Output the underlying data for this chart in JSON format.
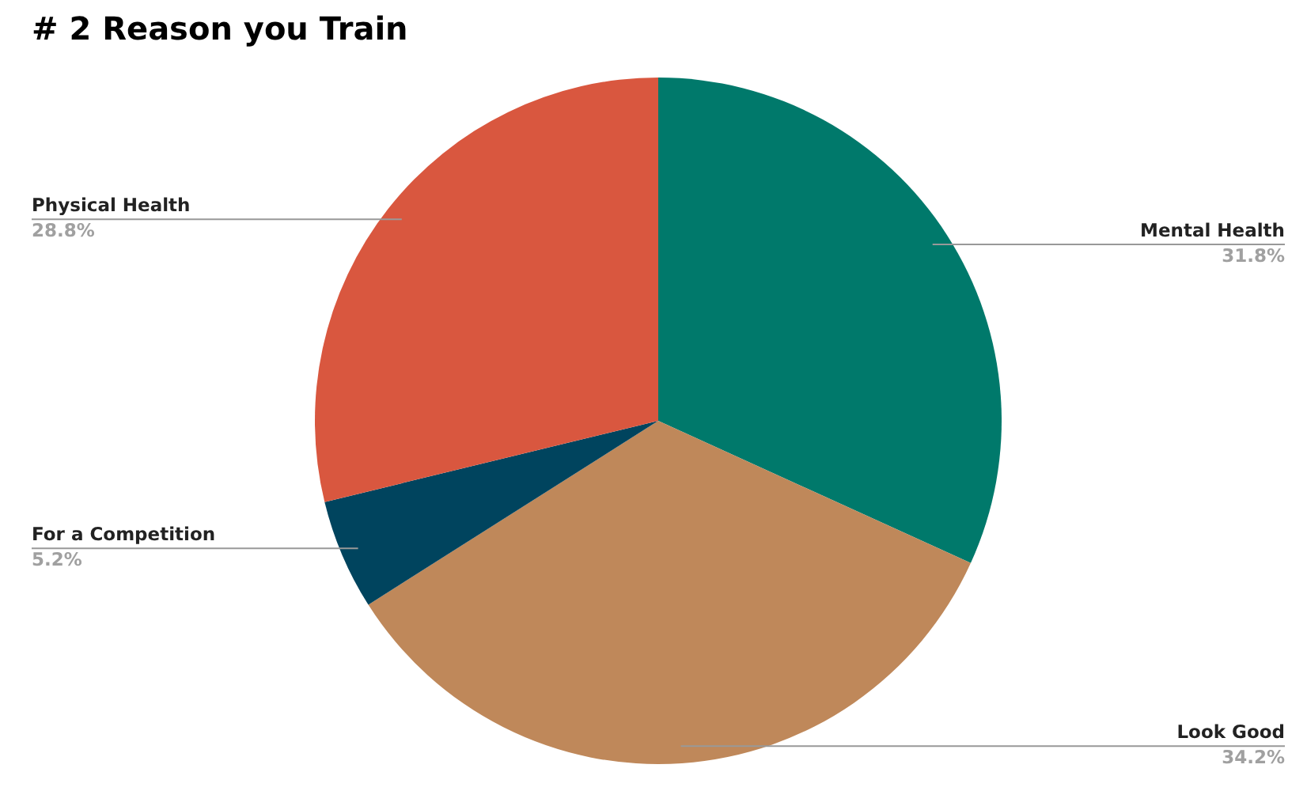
{
  "chart_data": {
    "type": "pie",
    "title": "# 2 Reason you Train",
    "categories": [
      "Mental Health",
      "Look Good",
      "For a Competition",
      "Physical Health"
    ],
    "values": [
      31.8,
      34.2,
      5.2,
      28.8
    ],
    "colors": [
      "#00796b",
      "#bf885a",
      "#00445e",
      "#d9573f"
    ],
    "value_labels": [
      "31.8%",
      "34.2%",
      "5.2%",
      "28.8%"
    ]
  }
}
